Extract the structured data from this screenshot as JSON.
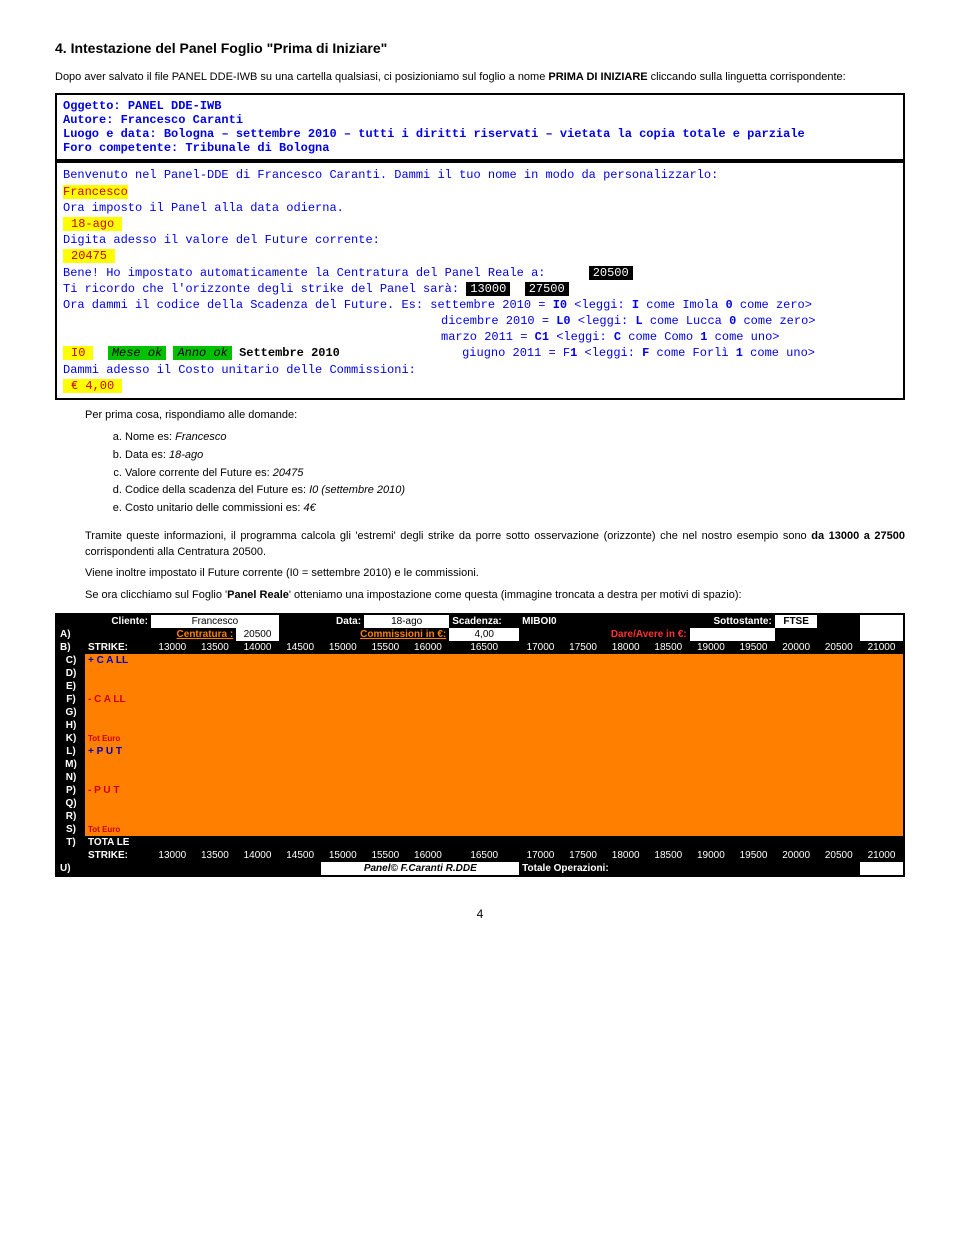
{
  "section_title": "4. Intestazione del Panel Foglio \"Prima di Iniziare\"",
  "intro": {
    "p1a": "Dopo aver salvato il file PANEL DDE-IWB su una cartella qualsiasi, ci posizioniamo sul foglio a nome ",
    "p1b": "PRIMA DI INIZIARE",
    "p1c": " cliccando sulla linguetta corrispondente:"
  },
  "box1": {
    "l1a": "Oggetto: ",
    "l1b": "PANEL DDE-IWB",
    "l2a": "Autore: ",
    "l2b": "Francesco Caranti",
    "l3a": "Luogo e data: ",
    "l3b": "Bologna – settembre 2010 – tutti i diritti riservati – vietata la copia totale e parziale",
    "l4a": "Foro competente: ",
    "l4b": "Tribunale di Bologna"
  },
  "box2": {
    "l1": "Benvenuto nel Panel-DDE di Francesco Caranti. Dammi il tuo nome in modo da personalizzarlo:",
    "l2": "Francesco",
    "l3": "Ora imposto il Panel alla data odierna.",
    "l4": "18-ago",
    "l5": "Digita adesso il valore del Future corrente:",
    "l6": "20475",
    "l7a": "Bene! Ho impostato automaticamente la Centratura del Panel Reale a: ",
    "l7b": "20500",
    "l8a": "Ti ricordo che l'orizzonte degli strike del Panel sarà: ",
    "l8b": "13000",
    "l8c": "27500",
    "l9a": "Ora dammi il codice della Scadenza del Future.   Es: settembre 2010 = ",
    "l9b": "I0",
    "l9c": " <leggi: ",
    "l9d": "I",
    "l9e": " come Imola   ",
    "l9f": "0",
    "l9g": " come zero>",
    "l10a": "dicembre  2010 = ",
    "l10b": "L0",
    "l10c": " <leggi: ",
    "l10d": "L",
    "l10e": " come Lucca   ",
    "l10f": "0",
    "l10g": " come zero>",
    "l11a": "marzo     2011 = ",
    "l11b": "C1",
    "l11c": " <leggi: ",
    "l11d": "C",
    "l11e": " come Como    ",
    "l11f": "1",
    "l11g": " come uno>",
    "l12a": "I0",
    "l12b": "Mese ok",
    "l12c": "Anno ok",
    "l12d": "Settembre 2010",
    "l12e": "giugno    2011 = F",
    "l12f": "1",
    "l12g": " <leggi: ",
    "l12h": "F",
    "l12i": " come Forlì   ",
    "l12j": "1",
    "l12k": " come uno>",
    "l13": "Dammi adesso il Costo unitario delle Commissioni:",
    "l14": "€ 4,00"
  },
  "after": {
    "p1": "Per prima cosa, rispondiamo alle domande:",
    "a": "Nome es: ",
    "av": "Francesco",
    "b": "Data es: ",
    "bv": "18-ago",
    "c": "Valore corrente del Future es: ",
    "cv": "20475",
    "d": "Codice della scadenza del Future es: ",
    "dv": "I0 (settembre 2010)",
    "e": "Costo unitario delle commissioni es: ",
    "ev": "4€",
    "p2": "Tramite queste informazioni, il programma calcola gli 'estremi' degli strike da porre sotto osservazione (orizzonte) che nel nostro esempio sono ",
    "p2b": "da 13000 a 27500",
    "p2c": " corrispondenti alla Centratura 20500.",
    "p3": "Viene inoltre impostato il Future corrente (I0 = settembre 2010) e le commissioni.",
    "p4a": "Se ora clicchiamo sul Foglio '",
    "p4b": "Panel Reale",
    "p4c": "' otteniamo una impostazione come questa (immagine troncata a destra per motivi di spazio):"
  },
  "panel": {
    "hdr": {
      "cliente_l": "Cliente:",
      "cliente_v": "Francesco",
      "data_l": "Data:",
      "data_v": "18-ago",
      "scad_l": "Scadenza:",
      "scad_v": "MIBOI0",
      "sott_l": "Sottostante:",
      "sott_v": "FTSE"
    },
    "rowA": {
      "let": "A)",
      "centr_l": "Centratura :",
      "centr_v": "20500",
      "comm_l": "Commissioni in €:",
      "comm_v": "4,00",
      "dare_l": "Dare/Avere in €:"
    },
    "rowB": {
      "let": "B)",
      "strike_l": "STRIKE:"
    },
    "strikes": [
      "13000",
      "13500",
      "14000",
      "14500",
      "15000",
      "15500",
      "16000",
      "16500",
      "17000",
      "17500",
      "18000",
      "18500",
      "19000",
      "19500",
      "20000",
      "20500",
      "21000"
    ],
    "rows": [
      {
        "let": "C)",
        "lab": "+ C A LL",
        "cls": "row-blue"
      },
      {
        "let": "D)",
        "lab": "",
        "cls": ""
      },
      {
        "let": "E)",
        "lab": "",
        "cls": ""
      },
      {
        "let": "F)",
        "lab": "- C A LL",
        "cls": "row-red"
      },
      {
        "let": "G)",
        "lab": "",
        "cls": ""
      },
      {
        "let": "H)",
        "lab": "",
        "cls": ""
      },
      {
        "let": "K)",
        "lab": "Tot Euro",
        "cls": "row-tot"
      },
      {
        "let": "L)",
        "lab": "+ P U T",
        "cls": "row-blue"
      },
      {
        "let": "M)",
        "lab": "",
        "cls": ""
      },
      {
        "let": "N)",
        "lab": "",
        "cls": ""
      },
      {
        "let": "P)",
        "lab": "- P U T",
        "cls": "row-red"
      },
      {
        "let": "Q)",
        "lab": "",
        "cls": ""
      },
      {
        "let": "R)",
        "lab": "",
        "cls": ""
      },
      {
        "let": "S)",
        "lab": "Tot Euro",
        "cls": "row-tot"
      },
      {
        "let": "T)",
        "lab": "TOTA LE",
        "cls": "row-tot2"
      }
    ],
    "rowU": {
      "let": "U)",
      "pnl": "Panel© F.Caranti R.DDE",
      "tot_l": "Totale Operazioni:"
    }
  },
  "pagenum": "4"
}
